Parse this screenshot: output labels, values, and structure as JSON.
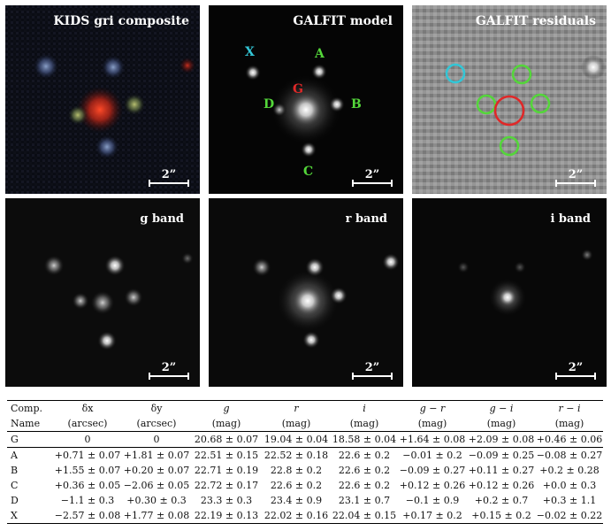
{
  "panels": {
    "composite": {
      "title": "KIDS gri composite",
      "scale": "2”"
    },
    "model": {
      "title": "GALFIT model",
      "scale": "2”",
      "labels": {
        "X": "X",
        "A": "A",
        "G": "G",
        "D": "D",
        "B": "B",
        "C": "C"
      }
    },
    "residuals": {
      "title": "GALFIT residuals",
      "scale": "2”"
    },
    "gband": {
      "title": "g band",
      "scale": "2”"
    },
    "rband": {
      "title": "r band",
      "scale": "2”"
    },
    "iband": {
      "title": "i band",
      "scale": "2”"
    }
  },
  "colors": {
    "cyan": "#33c6d6",
    "green": "#54d63a",
    "red": "#e02828"
  },
  "table": {
    "header1": [
      "Comp.",
      "δx",
      "δy",
      "g",
      "r",
      "i",
      "g − r",
      "g − i",
      "r − i"
    ],
    "header2": [
      "Name",
      "(arcsec)",
      "(arcsec)",
      "(mag)",
      "(mag)",
      "(mag)",
      "(mag)",
      "(mag)",
      "(mag)"
    ],
    "rows": [
      [
        "G",
        "0",
        "0",
        "20.68 ± 0.07",
        "19.04 ± 0.04",
        "18.58 ± 0.04",
        "+1.64 ± 0.08",
        "+2.09 ± 0.08",
        "+0.46 ± 0.06"
      ],
      [
        "A",
        "+0.71 ± 0.07",
        "+1.81 ± 0.07",
        "22.51 ± 0.15",
        "22.52 ± 0.18",
        "22.6 ± 0.2",
        "−0.01 ± 0.2",
        "−0.09 ± 0.25",
        "−0.08 ± 0.27"
      ],
      [
        "B",
        "+1.55 ± 0.07",
        "+0.20 ± 0.07",
        "22.71 ± 0.19",
        "22.8 ± 0.2",
        "22.6 ± 0.2",
        "−0.09 ± 0.27",
        "+0.11 ± 0.27",
        "+0.2 ± 0.28"
      ],
      [
        "C",
        "+0.36 ± 0.05",
        "−2.06 ± 0.05",
        "22.72 ± 0.17",
        "22.6 ± 0.2",
        "22.6 ± 0.2",
        "+0.12 ± 0.26",
        "+0.12 ± 0.26",
        "+0.0 ± 0.3"
      ],
      [
        "D",
        "−1.1 ± 0.3",
        "+0.30 ± 0.3",
        "23.3 ± 0.3",
        "23.4 ± 0.9",
        "23.1 ± 0.7",
        "−0.1 ± 0.9",
        "+0.2 ± 0.7",
        "+0.3 ± 1.1"
      ],
      [
        "X",
        "−2.57 ± 0.08",
        "+1.77 ± 0.08",
        "22.19 ± 0.13",
        "22.02 ± 0.16",
        "22.04 ± 0.15",
        "+0.17 ± 0.2",
        "+0.15 ± 0.2",
        "−0.02 ± 0.22"
      ]
    ]
  }
}
